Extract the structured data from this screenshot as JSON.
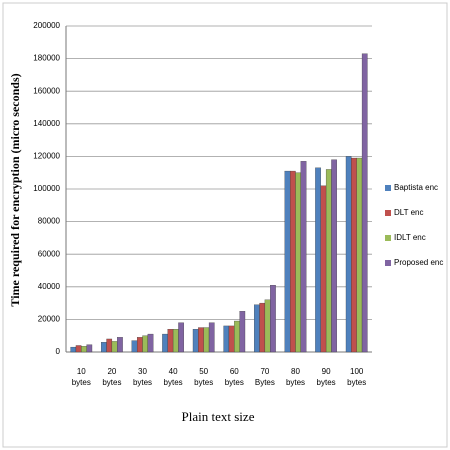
{
  "chart_data": {
    "type": "bar",
    "y_label": "Time required for encryption (micro seconds)",
    "x_label": "Plain text size",
    "categories": [
      "10 bytes",
      "20 bytes",
      "30 bytes",
      "40 bytes",
      "50 bytes",
      "60 bytes",
      "70 Bytes",
      "80 bytes",
      "90 bytes",
      "100 bytes"
    ],
    "series": [
      {
        "name": "Baptista enc",
        "color": "#4f81bd",
        "values": [
          3000,
          6000,
          7000,
          11000,
          14000,
          16000,
          29000,
          111000,
          113000,
          120000
        ]
      },
      {
        "name": "DLT enc",
        "color": "#c0504d",
        "values": [
          4000,
          8000,
          9000,
          14000,
          15000,
          16000,
          30000,
          111000,
          102000,
          119000
        ]
      },
      {
        "name": "IDLT enc",
        "color": "#9bbb59",
        "values": [
          3500,
          6500,
          10000,
          14000,
          15000,
          19000,
          32000,
          110000,
          112000,
          119000
        ]
      },
      {
        "name": "Proposed enc",
        "color": "#8064a2",
        "values": [
          4500,
          9000,
          11000,
          18000,
          18000,
          25000,
          41000,
          117000,
          118000,
          183000
        ]
      }
    ],
    "ylim": [
      0,
      200000
    ],
    "yticks": [
      0,
      20000,
      40000,
      60000,
      80000,
      100000,
      120000,
      140000,
      160000,
      180000,
      200000
    ],
    "grid": true
  }
}
